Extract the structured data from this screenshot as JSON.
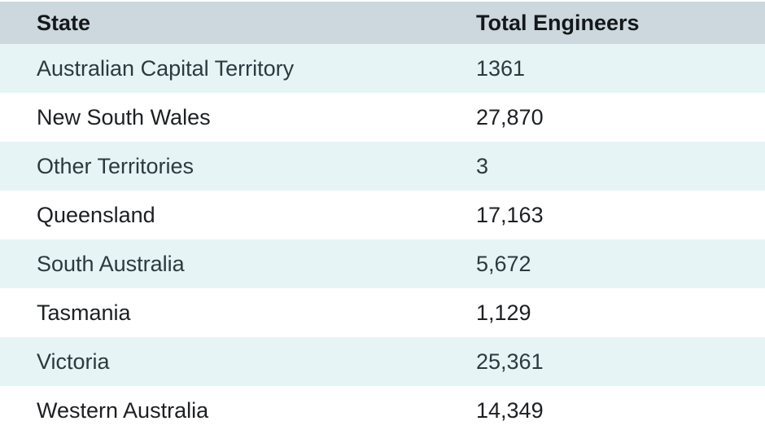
{
  "chart_data": {
    "type": "table",
    "columns": [
      "State",
      "Total Engineers"
    ],
    "rows": [
      {
        "state": "Australian Capital Territory",
        "total": "1361"
      },
      {
        "state": "New South Wales",
        "total": "27,870"
      },
      {
        "state": "Other Territories",
        "total": "3"
      },
      {
        "state": "Queensland",
        "total": "17,163"
      },
      {
        "state": "South Australia",
        "total": "5,672"
      },
      {
        "state": "Tasmania",
        "total": "1,129"
      },
      {
        "state": "Victoria",
        "total": "25,361"
      },
      {
        "state": "Western Australia",
        "total": "14,349"
      }
    ]
  },
  "colors": {
    "header_background": "#ccd8dd",
    "stripe_background": "#e6f4f6",
    "row_background": "#ffffff",
    "text": "#1d1f22"
  }
}
